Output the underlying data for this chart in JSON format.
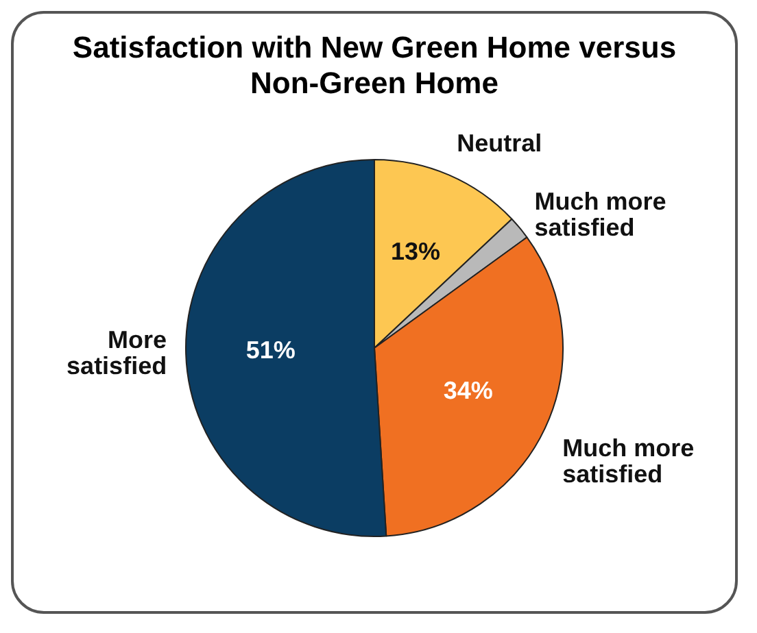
{
  "chart_data": {
    "type": "pie",
    "title": "Satisfaction with New Green Home versus Non-Green Home",
    "categories": [
      "Neutral",
      "Much more satisfied",
      "Much more satisfied",
      "More satisfied"
    ],
    "values": [
      13,
      2,
      34,
      51
    ],
    "colors": [
      "#fdc752",
      "#b9b9b9",
      "#f07022",
      "#0b3d63"
    ],
    "value_labels": [
      "13%",
      null,
      "34%",
      "51%"
    ],
    "legend": false
  }
}
